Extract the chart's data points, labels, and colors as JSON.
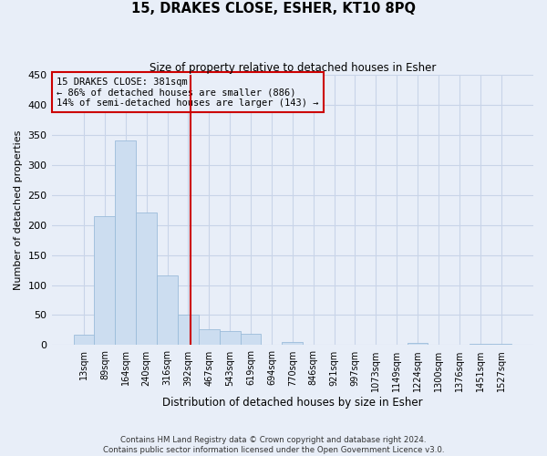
{
  "title": "15, DRAKES CLOSE, ESHER, KT10 8PQ",
  "subtitle": "Size of property relative to detached houses in Esher",
  "xlabel": "Distribution of detached houses by size in Esher",
  "ylabel": "Number of detached properties",
  "bin_labels": [
    "13sqm",
    "89sqm",
    "164sqm",
    "240sqm",
    "316sqm",
    "392sqm",
    "467sqm",
    "543sqm",
    "619sqm",
    "694sqm",
    "770sqm",
    "846sqm",
    "921sqm",
    "997sqm",
    "1073sqm",
    "1149sqm",
    "1224sqm",
    "1300sqm",
    "1376sqm",
    "1451sqm",
    "1527sqm"
  ],
  "bar_values": [
    18,
    214,
    340,
    221,
    116,
    51,
    26,
    24,
    19,
    0,
    6,
    0,
    0,
    0,
    0,
    0,
    3,
    0,
    0,
    2,
    2
  ],
  "bar_color": "#ccddf0",
  "bar_edgecolor": "#9bbcda",
  "vline_x": 5.13,
  "vline_color": "#cc0000",
  "annotation_lines": [
    "15 DRAKES CLOSE: 381sqm",
    "← 86% of detached houses are smaller (886)",
    "14% of semi-detached houses are larger (143) →"
  ],
  "ylim": [
    0,
    450
  ],
  "yticks": [
    0,
    50,
    100,
    150,
    200,
    250,
    300,
    350,
    400,
    450
  ],
  "grid_color": "#c8d4e8",
  "background_color": "#e8eef8",
  "footnote1": "Contains HM Land Registry data © Crown copyright and database right 2024.",
  "footnote2": "Contains public sector information licensed under the Open Government Licence v3.0."
}
